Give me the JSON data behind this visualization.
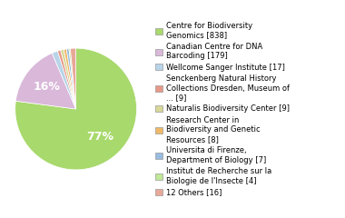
{
  "labels": [
    "Centre for Biodiversity\nGenomics [838]",
    "Canadian Centre for DNA\nBarcoding [179]",
    "Wellcome Sanger Institute [17]",
    "Senckenberg Natural History\nCollections Dresden, Museum of\n... [9]",
    "Naturalis Biodiversity Center [9]",
    "Research Center in\nBiodiversity and Genetic\nResources [8]",
    "Universita di Firenze,\nDepartment of Biology [7]",
    "Institut de Recherche sur la\nBiologie de l'Insecte [4]",
    "12 Others [16]"
  ],
  "values": [
    838,
    179,
    17,
    9,
    9,
    8,
    7,
    4,
    16
  ],
  "colors": [
    "#a8d96c",
    "#d9b8d9",
    "#b8d4e8",
    "#e89888",
    "#d8d898",
    "#f0b868",
    "#98bce0",
    "#c0e898",
    "#e8a898"
  ],
  "figsize": [
    3.8,
    2.4
  ],
  "dpi": 100,
  "legend_fontsize": 6.0,
  "pct_fontsize": 9
}
